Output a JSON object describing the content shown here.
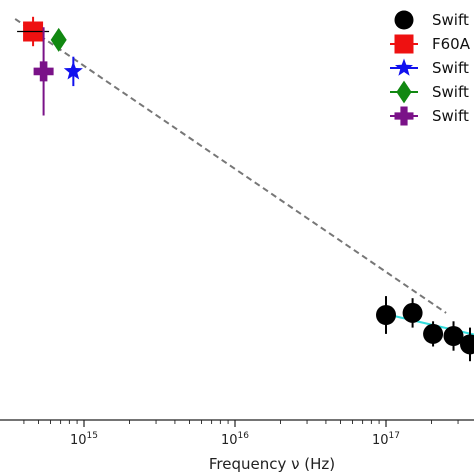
{
  "chart_data": {
    "type": "scatter",
    "title": "",
    "xlabel": "Frequency ν (Hz)",
    "ylabel": "",
    "xscale": "log",
    "xlim": [
      320000000000000.0,
      6e+17
    ],
    "yscale": "relative",
    "ylim": [
      0,
      1
    ],
    "grid": false,
    "legend_position": "top-right",
    "x_ticks": [
      {
        "value": 1000000000000000.0,
        "base": "10",
        "exponent": "15"
      },
      {
        "value": 1e+16,
        "base": "10",
        "exponent": "16"
      },
      {
        "value": 1e+17,
        "base": "10",
        "exponent": "17"
      }
    ],
    "series": [
      {
        "name": "Swift",
        "marker": "circle",
        "color": "#000000",
        "points": [
          {
            "x": 1e+17,
            "y": 0.25,
            "err": 0.045
          },
          {
            "x": 1.5e+17,
            "y": 0.255,
            "err": 0.035
          },
          {
            "x": 2.05e+17,
            "y": 0.205,
            "err": 0.03
          },
          {
            "x": 2.8e+17,
            "y": 0.2,
            "err": 0.035
          },
          {
            "x": 3.6e+17,
            "y": 0.18,
            "err": 0.04
          }
        ]
      },
      {
        "name": "F60A",
        "marker": "square",
        "color": "#ee1111",
        "points": [
          {
            "x": 460000000000000.0,
            "y": 0.925,
            "err": 0.035
          }
        ]
      },
      {
        "name": "Swift",
        "marker": "star",
        "color": "#1111ee",
        "points": [
          {
            "x": 850000000000000.0,
            "y": 0.83,
            "err": 0.035
          }
        ]
      },
      {
        "name": "Swift",
        "marker": "diamond",
        "color": "#118811",
        "points": [
          {
            "x": 680000000000000.0,
            "y": 0.905,
            "err": 0.025
          }
        ]
      },
      {
        "name": "Swift",
        "marker": "plus",
        "color": "#7a1288",
        "points": [
          {
            "x": 540000000000000.0,
            "y": 0.83,
            "err": 0.105
          }
        ]
      }
    ],
    "lines": [
      {
        "style": "dashed",
        "color": "#777777",
        "points": [
          {
            "x": 350000000000000.0,
            "y": 0.955
          },
          {
            "x": 2.5e+17,
            "y": 0.255
          }
        ]
      },
      {
        "style": "solid",
        "color": "#33dddd",
        "points": [
          {
            "x": 1e+17,
            "y": 0.252
          },
          {
            "x": 4.2e+17,
            "y": 0.2
          }
        ]
      }
    ]
  }
}
